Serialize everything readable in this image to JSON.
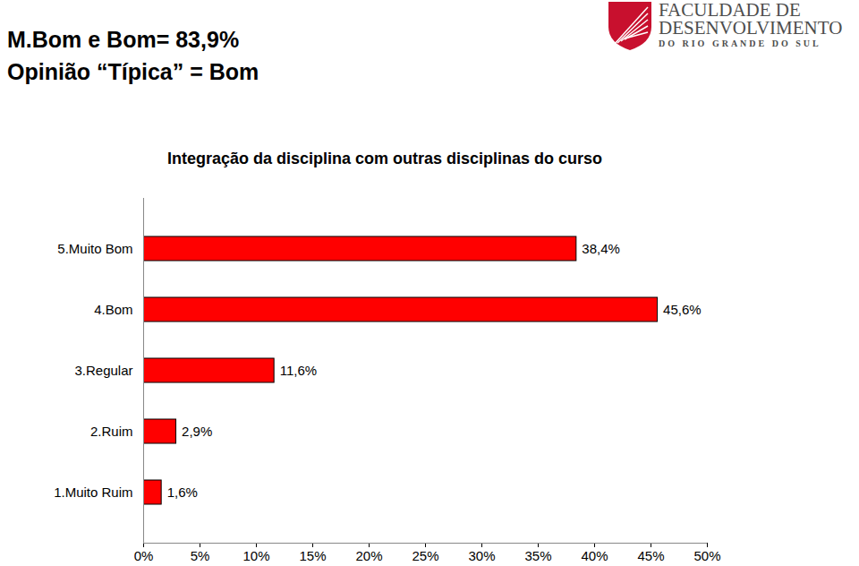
{
  "header": {
    "lines": [
      "M.Bom e Bom= 83,9%",
      "Opinião “Típica” = Bom"
    ],
    "logo": [
      "FACULDADE DE",
      "DESENVOLVIMENTO",
      "DO RIO GRANDE DO SUL"
    ]
  },
  "chart_data": {
    "type": "bar",
    "orientation": "horizontal",
    "title": "Integração da disciplina com outras disciplinas do curso",
    "categories": [
      "5.Muito Bom",
      "4.Bom",
      "3.Regular",
      "2.Ruim",
      "1.Muito Ruim"
    ],
    "values": [
      38.4,
      45.6,
      11.6,
      2.9,
      1.6
    ],
    "value_labels": [
      "38,4%",
      "45,6%",
      "11,6%",
      "2,9%",
      "1,6%"
    ],
    "data_labels": true,
    "color": "#ff0000",
    "xlim": [
      0,
      50
    ],
    "xticks": [
      {
        "value": 0,
        "label": "0%"
      },
      {
        "value": 5,
        "label": "5%"
      },
      {
        "value": 10,
        "label": "10%"
      },
      {
        "value": 15,
        "label": "15%"
      },
      {
        "value": 20,
        "label": "20%"
      },
      {
        "value": 25,
        "label": "25%"
      },
      {
        "value": 30,
        "label": "30%"
      },
      {
        "value": 35,
        "label": "35%"
      },
      {
        "value": 40,
        "label": "40%"
      },
      {
        "value": 45,
        "label": "45%"
      },
      {
        "value": 50,
        "label": "50%"
      }
    ],
    "grid": false
  }
}
